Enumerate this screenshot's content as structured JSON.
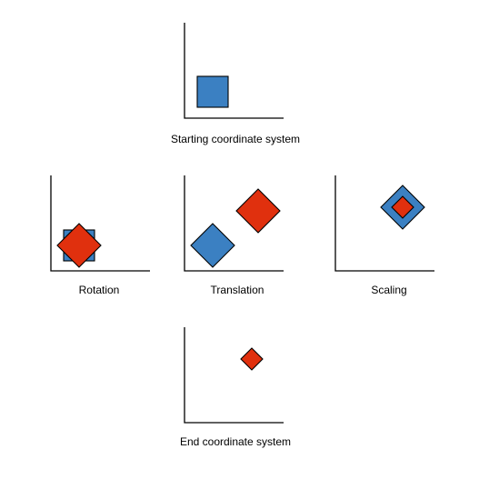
{
  "colors": {
    "original": "#3b80c2",
    "transformed": "#e0300e",
    "outline": "#000000"
  },
  "panels": [
    {
      "id": "starting",
      "caption": "Starting coordinate system"
    },
    {
      "id": "rotation",
      "caption": "Rotation"
    },
    {
      "id": "translation",
      "caption": "Translation"
    },
    {
      "id": "scaling",
      "caption": "Scaling"
    },
    {
      "id": "end",
      "caption": "End coordinate system"
    }
  ]
}
